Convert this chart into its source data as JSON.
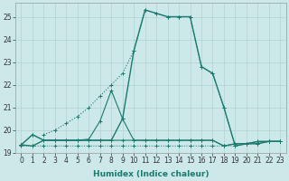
{
  "xlabel": "Humidex (Indice chaleur)",
  "x": [
    0,
    1,
    2,
    3,
    4,
    5,
    6,
    7,
    8,
    9,
    10,
    11,
    12,
    13,
    14,
    15,
    16,
    17,
    18,
    19,
    20,
    21,
    22,
    23
  ],
  "series": [
    {
      "y": [
        19.3,
        19.3,
        19.3,
        19.3,
        19.3,
        19.3,
        19.3,
        19.3,
        19.3,
        19.3,
        19.3,
        19.3,
        19.3,
        19.3,
        19.3,
        19.3,
        19.3,
        19.3,
        19.3,
        19.3,
        19.4,
        19.45,
        19.5,
        19.5
      ],
      "style": "dotted",
      "lw": 0.7
    },
    {
      "y": [
        19.35,
        19.8,
        19.55,
        19.55,
        19.55,
        19.55,
        19.55,
        19.55,
        19.55,
        19.55,
        19.55,
        19.55,
        19.55,
        19.55,
        19.55,
        19.55,
        19.55,
        19.55,
        19.3,
        19.4,
        19.4,
        19.5,
        19.5,
        19.5
      ],
      "style": "solid",
      "lw": 0.8
    },
    {
      "y": [
        19.35,
        19.8,
        19.55,
        19.55,
        19.55,
        19.55,
        19.6,
        20.4,
        21.75,
        20.5,
        19.55,
        19.55,
        19.55,
        19.55,
        19.55,
        19.55,
        19.55,
        19.55,
        19.3,
        19.4,
        19.4,
        19.5,
        19.5,
        19.5
      ],
      "style": "solid",
      "lw": 0.8
    },
    {
      "y": [
        19.35,
        null,
        19.8,
        20.0,
        20.3,
        20.6,
        21.0,
        21.5,
        22.0,
        22.5,
        23.5,
        25.3,
        25.15,
        25.0,
        25.0,
        25.0,
        22.8,
        22.5,
        21.0,
        19.3,
        19.4,
        19.4,
        19.5,
        19.5
      ],
      "style": "dotted",
      "lw": 0.8
    },
    {
      "y": [
        19.35,
        19.3,
        19.55,
        19.55,
        19.55,
        19.55,
        19.55,
        19.55,
        19.55,
        20.5,
        23.5,
        25.3,
        25.15,
        25.0,
        25.0,
        25.0,
        22.8,
        22.5,
        21.0,
        19.3,
        19.4,
        19.4,
        19.5,
        19.5
      ],
      "style": "solid",
      "lw": 1.0
    }
  ],
  "line_color": "#1a7a6e",
  "bg_color": "#cce8e8",
  "grid_color": "#aacccc",
  "ylim": [
    19.0,
    25.6
  ],
  "yticks": [
    19,
    20,
    21,
    22,
    23,
    24,
    25
  ],
  "xlim": [
    -0.5,
    23.5
  ],
  "xticks": [
    0,
    1,
    2,
    3,
    4,
    5,
    6,
    7,
    8,
    9,
    10,
    11,
    12,
    13,
    14,
    15,
    16,
    17,
    18,
    19,
    20,
    21,
    22,
    23
  ],
  "tick_fontsize": 5.5,
  "xlabel_fontsize": 6.5
}
